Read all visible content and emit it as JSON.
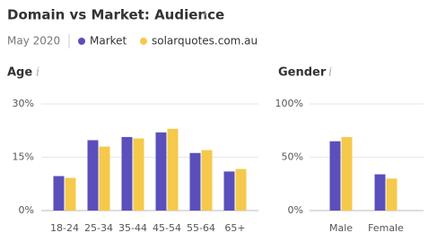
{
  "header": {
    "title": "Domain vs Market: Audience",
    "date": "May 2020"
  },
  "chart_data": [
    {
      "type": "bar",
      "title": "Age",
      "categories": [
        "18-24",
        "25-34",
        "35-44",
        "45-54",
        "55-64",
        "65+"
      ],
      "series": [
        {
          "name": "Market",
          "color": "#5a4fbb",
          "values": [
            9.7,
            19.8,
            20.7,
            22,
            16.2,
            11
          ]
        },
        {
          "name": "solarquotes.com.au",
          "color": "#f5c94b",
          "values": [
            9.2,
            18,
            20.3,
            23,
            17,
            11.7
          ]
        }
      ],
      "ylim": [
        0,
        30
      ],
      "yticks": [
        {
          "value": 0,
          "label": "0%"
        },
        {
          "value": 15,
          "label": "15%"
        },
        {
          "value": 30,
          "label": "30%"
        }
      ],
      "grid": true
    },
    {
      "type": "bar",
      "title": "Gender",
      "categories": [
        "Male",
        "Female"
      ],
      "series": [
        {
          "color": "#5a4fbb",
          "values": [
            65,
            34
          ]
        },
        {
          "color": "#f5c94b",
          "values": [
            69,
            30
          ]
        }
      ],
      "ylim": [
        0,
        100
      ],
      "yticks": [
        {
          "value": 0,
          "label": "0%"
        },
        {
          "value": 50,
          "label": "50%"
        },
        {
          "value": 100,
          "label": "100%"
        }
      ],
      "grid": true
    }
  ]
}
